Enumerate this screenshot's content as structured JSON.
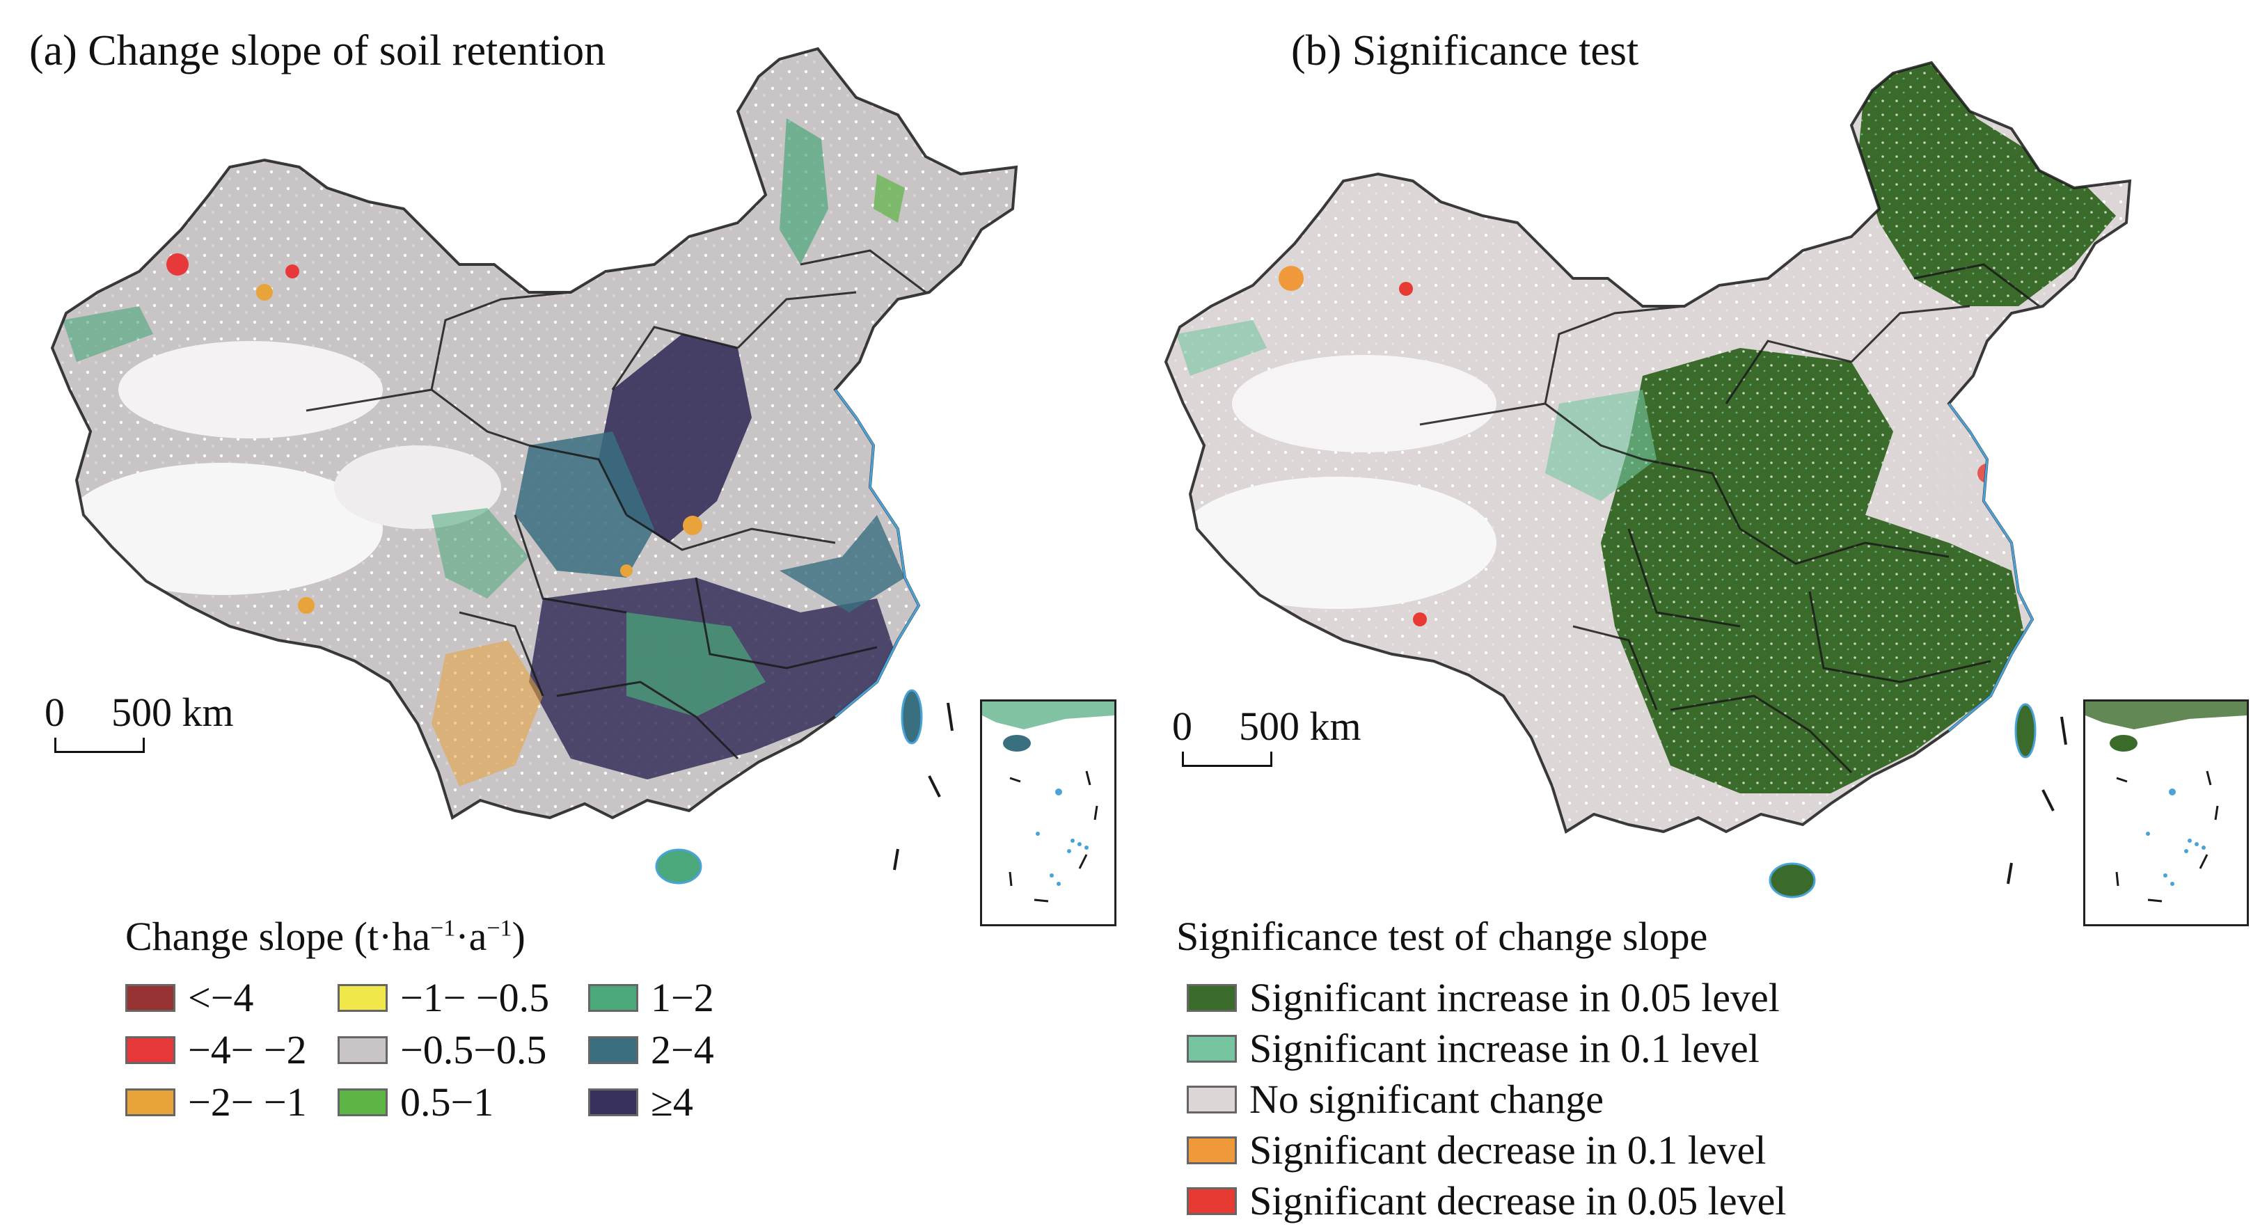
{
  "panels": {
    "a": {
      "title": "(a) Change slope of soil retention",
      "scale": {
        "zero": "0",
        "distance": "500 km"
      },
      "legend": {
        "title_main": "Change slope (t·ha",
        "title_sup1": "−1",
        "title_mid": "·a",
        "title_sup2": "−1",
        "title_end": ")",
        "items": [
          {
            "label": "<−4",
            "color": "#963232"
          },
          {
            "label": "−4− −2",
            "color": "#e8393a"
          },
          {
            "label": "−2− −1",
            "color": "#e8a43b"
          },
          {
            "label": "−1− −0.5",
            "color": "#f0e84a"
          },
          {
            "label": "−0.5−0.5",
            "color": "#c9c4c5"
          },
          {
            "label": "0.5−1",
            "color": "#5cb545"
          },
          {
            "label": "1−2",
            "color": "#4aa87a"
          },
          {
            "label": "2−4",
            "color": "#3a6f80"
          },
          {
            "label": "≥4",
            "color": "#36305a"
          }
        ]
      }
    },
    "b": {
      "title": "(b) Significance test",
      "scale": {
        "zero": "0",
        "distance": "500 km"
      },
      "legend": {
        "title": "Significance test of change slope",
        "items": [
          {
            "label": "Significant increase in 0.05 level",
            "color": "#3b6b2a"
          },
          {
            "label": "Significant increase in 0.1 level",
            "color": "#76c4a0"
          },
          {
            "label": "No significant change",
            "color": "#dcd6d6"
          },
          {
            "label": "Significant decrease in 0.1 level",
            "color": "#f0993a"
          },
          {
            "label": "Significant decrease in 0.05 level",
            "color": "#e63a32"
          }
        ]
      }
    }
  },
  "colors": {
    "coast": "#4aa3d8",
    "border": "#1a1a1a"
  }
}
